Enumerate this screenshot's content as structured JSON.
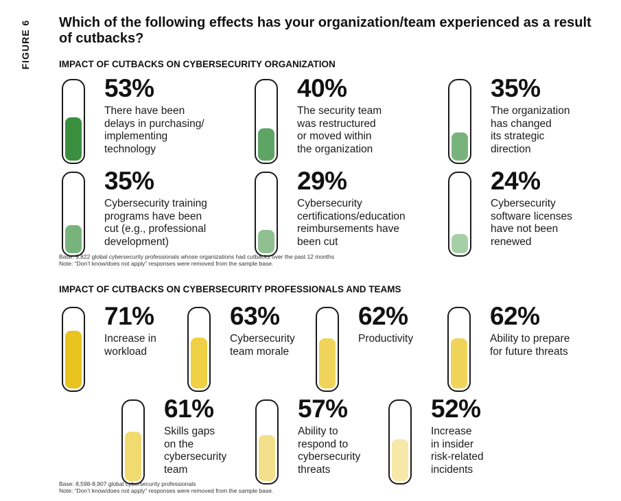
{
  "figure_label": "FIGURE 6",
  "question": "Which of the following effects has your organization/team experienced as a result of cutbacks?",
  "chart_data": [
    {
      "type": "bar",
      "title": "IMPACT OF CUTBACKS ON CYBERSECURITY ORGANIZATION",
      "ylim": [
        0,
        100
      ],
      "categories": [
        "There have been delays in purchasing/ implementing technology",
        "The security team was restructured or moved within the organization",
        "The organization has changed its strategic direction",
        "Cybersecurity training programs have been cut (e.g., professional development)",
        "Cybersecurity certifications/education reimbursements have been cut",
        "Cybersecurity software licenses have not been renewed"
      ],
      "values": [
        53,
        40,
        35,
        35,
        29,
        24
      ],
      "items": [
        {
          "pct": "53%",
          "value": 53,
          "lines": [
            "There have been",
            "delays in purchasing/",
            "implementing",
            "technology"
          ],
          "color": "#3a8f3e"
        },
        {
          "pct": "40%",
          "value": 40,
          "lines": [
            "The security team",
            "was restructured",
            "or moved within",
            "the organization"
          ],
          "color": "#5ea464"
        },
        {
          "pct": "35%",
          "value": 35,
          "lines": [
            "The organization",
            "has changed",
            "its strategic",
            "direction"
          ],
          "color": "#79b37c"
        },
        {
          "pct": "35%",
          "value": 35,
          "lines": [
            "Cybersecurity training",
            "programs have been",
            "cut (e.g., professional",
            "development)"
          ],
          "color": "#79b37c"
        },
        {
          "pct": "29%",
          "value": 29,
          "lines": [
            "Cybersecurity",
            "certifications/education",
            "reimbursements have",
            "been cut"
          ],
          "color": "#8fc190"
        },
        {
          "pct": "24%",
          "value": 24,
          "lines": [
            "Cybersecurity",
            "software licenses",
            "have not been",
            "renewed"
          ],
          "color": "#a6cfa5"
        }
      ],
      "note_lines": [
        "Base: 9,822 global cybersecurity professionals whose organizations had cutbacks over the past 12 months",
        "Note: “Don’t know/does not apply” responses were removed from the sample base."
      ]
    },
    {
      "type": "bar",
      "title": "IMPACT OF CUTBACKS ON CYBERSECURITY PROFESSIONALS AND TEAMS",
      "ylim": [
        0,
        100
      ],
      "categories": [
        "Increase in workload",
        "Cybersecurity team morale",
        "Productivity",
        "Ability to prepare for future threats",
        "Skills gaps on the cybersecurity team",
        "Ability to respond to cybersecurity threats",
        "Increase in insider risk-related incidents"
      ],
      "values": [
        71,
        63,
        62,
        62,
        61,
        57,
        52
      ],
      "items": [
        {
          "pct": "71%",
          "value": 71,
          "lines": [
            "Increase in",
            "workload"
          ],
          "color": "#e9c31f"
        },
        {
          "pct": "63%",
          "value": 63,
          "lines": [
            "Cybersecurity",
            "team morale"
          ],
          "color": "#efcf44"
        },
        {
          "pct": "62%",
          "value": 62,
          "lines": [
            "Productivity"
          ],
          "color": "#f0d45a"
        },
        {
          "pct": "62%",
          "value": 62,
          "lines": [
            "Ability to prepare",
            "for future threats"
          ],
          "color": "#f0d45a"
        },
        {
          "pct": "61%",
          "value": 61,
          "lines": [
            "Skills gaps",
            "on the",
            "cybersecurity",
            "team"
          ],
          "color": "#f1da70"
        },
        {
          "pct": "57%",
          "value": 57,
          "lines": [
            "Ability to",
            "respond to",
            "cybersecurity",
            "threats"
          ],
          "color": "#f3e08b"
        },
        {
          "pct": "52%",
          "value": 52,
          "lines": [
            "Increase",
            "in insider",
            "risk-related",
            "incidents"
          ],
          "color": "#f6e8a8"
        }
      ],
      "note_lines": [
        "Base: 8,598-8,907 global cybersecurity professionals",
        "Note: “Don’t know/does not apply” responses were removed from the sample base."
      ]
    }
  ]
}
